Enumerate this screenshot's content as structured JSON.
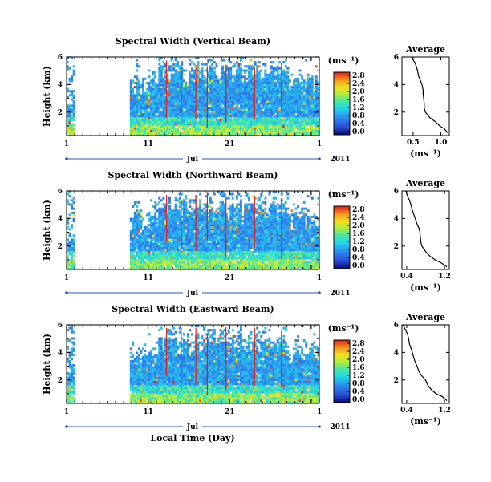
{
  "figure": {
    "x_axis_label": "Local Time (Day)",
    "x_month_label": "Jul",
    "x_year_label": "2011",
    "y_axis_label": "Height (km)",
    "colorbar_unit": "(ms⁻¹)",
    "profile_unit": "(ms⁻¹)",
    "profile_title": "Average"
  },
  "chart_data": [
    {
      "type": "heatmap",
      "title": "Spectral Width (Vertical Beam)",
      "xlabel": "",
      "ylabel": "Height (km)",
      "x_ticks": [
        "1",
        "11",
        "21",
        "1"
      ],
      "y_ticks": [
        "6",
        "4",
        "2"
      ],
      "xlim_days": [
        1,
        32
      ],
      "ylim_km": [
        0.3,
        6
      ],
      "colorbar": {
        "min": 0.0,
        "max": 2.8,
        "ticks": [
          "2.8",
          "2.4",
          "2.0",
          "1.6",
          "1.2",
          "0.8",
          "0.4",
          "0.0"
        ]
      },
      "data_gaps_days": [
        [
          2.0,
          8.6
        ]
      ],
      "sparse_region_above_km": 3.8,
      "profile": {
        "title": "Average",
        "x_ticks": [
          "0.5",
          "1.0"
        ],
        "xlim": [
          0.3,
          1.15
        ],
        "y_ticks": [
          "6",
          "4",
          "2"
        ],
        "ylim": [
          0.3,
          6
        ],
        "height_km": [
          0.5,
          0.8,
          1.0,
          1.3,
          1.6,
          2.0,
          2.3,
          2.6,
          3.0,
          3.3,
          3.6,
          4.0,
          4.3,
          4.6,
          5.0,
          5.3,
          5.6,
          6.0
        ],
        "width_ms": [
          1.12,
          1.06,
          0.98,
          0.9,
          0.8,
          0.72,
          0.7,
          0.7,
          0.69,
          0.68,
          0.68,
          0.66,
          0.63,
          0.6,
          0.58,
          0.56,
          0.53,
          0.47
        ]
      }
    },
    {
      "type": "heatmap",
      "title": "Spectral Width (Northward Beam)",
      "xlabel": "",
      "ylabel": "Height (km)",
      "x_ticks": [
        "1",
        "11",
        "21",
        "1"
      ],
      "y_ticks": [
        "6",
        "4",
        "2"
      ],
      "xlim_days": [
        1,
        32
      ],
      "ylim_km": [
        0.3,
        6
      ],
      "colorbar": {
        "min": 0.0,
        "max": 2.8,
        "ticks": [
          "2.8",
          "2.4",
          "2.0",
          "1.6",
          "1.2",
          "0.8",
          "0.4",
          "0.0"
        ]
      },
      "data_gaps_days": [
        [
          2.0,
          8.6
        ]
      ],
      "sparse_region_above_km": 3.6,
      "profile": {
        "title": "Average",
        "x_ticks": [
          "0.4",
          "1.2"
        ],
        "xlim": [
          0.3,
          1.3
        ],
        "y_ticks": [
          "6",
          "4",
          "2"
        ],
        "ylim": [
          0.3,
          6
        ],
        "height_km": [
          0.5,
          0.8,
          1.0,
          1.3,
          1.6,
          2.0,
          2.3,
          2.6,
          3.0,
          3.3,
          3.6,
          4.0,
          4.3,
          4.6,
          5.0,
          5.3,
          5.6,
          6.0
        ],
        "width_ms": [
          1.25,
          1.12,
          1.0,
          0.88,
          0.8,
          0.72,
          0.7,
          0.69,
          0.68,
          0.66,
          0.62,
          0.58,
          0.55,
          0.52,
          0.49,
          0.46,
          0.42,
          0.38
        ]
      }
    },
    {
      "type": "heatmap",
      "title": "Spectral Width (Eastward Beam)",
      "xlabel": "Local Time (Day)",
      "ylabel": "Height (km)",
      "x_ticks": [
        "1",
        "11",
        "21",
        "1"
      ],
      "y_ticks": [
        "6",
        "4",
        "2"
      ],
      "xlim_days": [
        1,
        32
      ],
      "ylim_km": [
        0.3,
        6
      ],
      "colorbar": {
        "min": 0.0,
        "max": 2.8,
        "ticks": [
          "2.8",
          "2.4",
          "2.0",
          "1.6",
          "1.2",
          "0.8",
          "0.4",
          "0.0"
        ]
      },
      "data_gaps_days": [
        [
          2.0,
          8.6
        ]
      ],
      "sparse_region_above_km": 3.6,
      "profile": {
        "title": "Average",
        "x_ticks": [
          "0.4",
          "1.2"
        ],
        "xlim": [
          0.3,
          1.3
        ],
        "y_ticks": [
          "6",
          "4",
          "2"
        ],
        "ylim": [
          0.3,
          6
        ],
        "height_km": [
          0.5,
          0.8,
          1.0,
          1.3,
          1.6,
          2.0,
          2.3,
          2.6,
          3.0,
          3.3,
          3.6,
          4.0,
          4.3,
          4.6,
          5.0,
          5.3,
          5.6,
          6.0
        ],
        "width_ms": [
          1.25,
          1.15,
          1.02,
          0.92,
          0.85,
          0.8,
          0.72,
          0.66,
          0.62,
          0.58,
          0.55,
          0.52,
          0.49,
          0.46,
          0.44,
          0.42,
          0.38,
          0.32
        ]
      }
    }
  ]
}
